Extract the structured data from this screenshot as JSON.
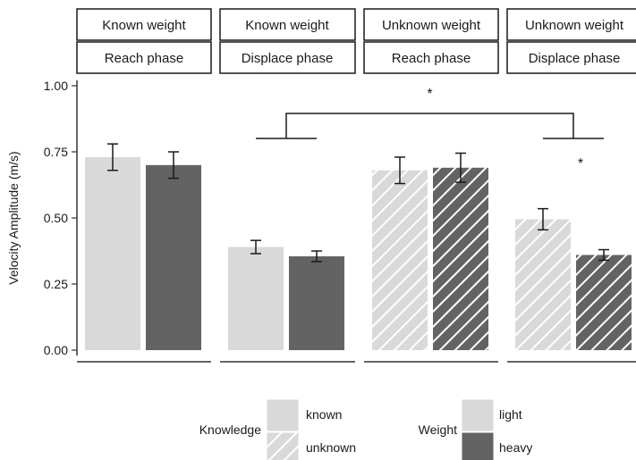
{
  "chart_data": {
    "type": "bar",
    "ylabel": "Velocity Amplitude (m/s)",
    "ylim": [
      0,
      1.0
    ],
    "yticks": [
      "0.00",
      "0.25",
      "0.50",
      "0.75",
      "1.00"
    ],
    "grid": false,
    "facets": [
      {
        "knowledge_label": "Known weight",
        "phase_label": "Reach phase",
        "knowledge": "known",
        "bars": [
          {
            "weight": "light",
            "value": 0.73,
            "err": 0.05
          },
          {
            "weight": "heavy",
            "value": 0.7,
            "err": 0.05
          }
        ]
      },
      {
        "knowledge_label": "Known weight",
        "phase_label": "Displace phase",
        "knowledge": "known",
        "bars": [
          {
            "weight": "light",
            "value": 0.39,
            "err": 0.025
          },
          {
            "weight": "heavy",
            "value": 0.355,
            "err": 0.02
          }
        ]
      },
      {
        "knowledge_label": "Unknown weight",
        "phase_label": "Reach phase",
        "knowledge": "unknown",
        "bars": [
          {
            "weight": "light",
            "value": 0.68,
            "err": 0.05
          },
          {
            "weight": "heavy",
            "value": 0.69,
            "err": 0.055
          }
        ]
      },
      {
        "knowledge_label": "Unknown weight",
        "phase_label": "Displace phase",
        "knowledge": "unknown",
        "bars": [
          {
            "weight": "light",
            "value": 0.495,
            "err": 0.04
          },
          {
            "weight": "heavy",
            "value": 0.36,
            "err": 0.02
          }
        ]
      }
    ],
    "annotations": [
      {
        "type": "bracket",
        "text": "*",
        "between_facets": [
          1,
          3
        ]
      },
      {
        "type": "star",
        "text": "*",
        "facet": 3
      }
    ],
    "legend": {
      "placement": "bottom",
      "knowledge": {
        "title": "Knowledge",
        "items": [
          "known",
          "unknown"
        ]
      },
      "weight": {
        "title": "Weight",
        "items": [
          "light",
          "heavy"
        ]
      }
    },
    "colors": {
      "light": "#d9d9d9",
      "heavy": "#636363",
      "hatch": "#ffffff",
      "axis": "#333333",
      "strip_border": "#1a1a1a"
    }
  }
}
